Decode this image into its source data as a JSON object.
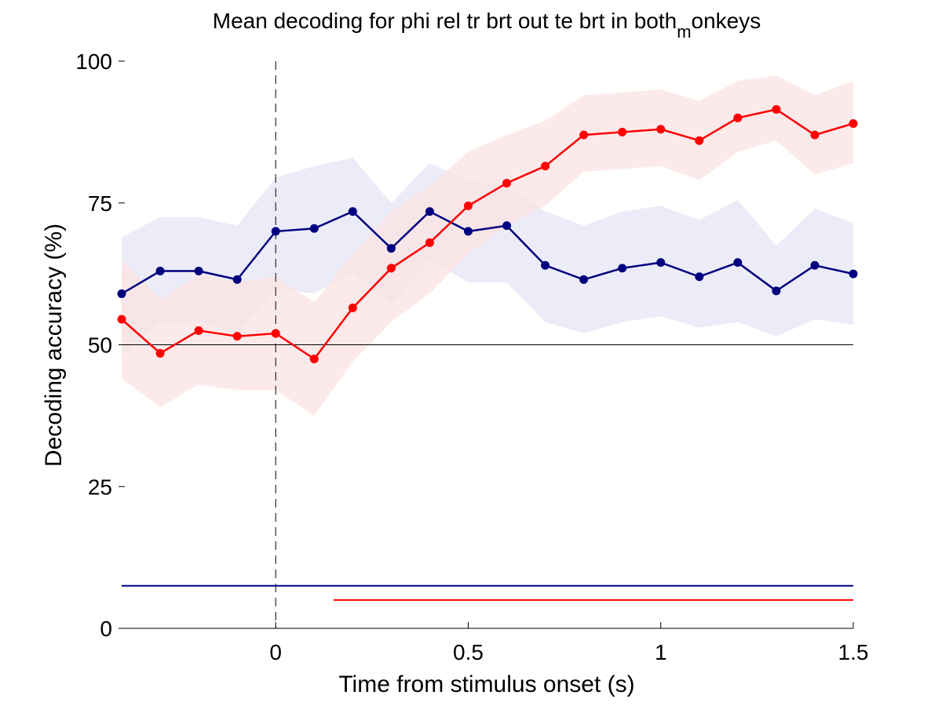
{
  "chart_data": {
    "type": "line",
    "title": {
      "text": "Mean decoding for phi rel tr brt out te brt in  both",
      "subscript": "m",
      "suffix": "onkeys"
    },
    "xlabel": "Time from stimulus onset (s)",
    "ylabel": "Decoding accuracy (%)",
    "xlim": [
      -0.4,
      1.5
    ],
    "ylim": [
      0,
      100
    ],
    "x_ticks": [
      0,
      0.5,
      1,
      1.5
    ],
    "x_tick_labels": [
      "0",
      "0.5",
      "1",
      "1.5"
    ],
    "y_ticks": [
      0,
      25,
      50,
      75,
      100
    ],
    "y_tick_labels": [
      "0",
      "25",
      "50",
      "75",
      "100"
    ],
    "grid": false,
    "chance_level": 50,
    "stimulus_onset": 0,
    "x": [
      -0.4,
      -0.3,
      -0.2,
      -0.1,
      0.0,
      0.1,
      0.2,
      0.3,
      0.4,
      0.5,
      0.6,
      0.7,
      0.8,
      0.9,
      1.0,
      1.1,
      1.2,
      1.3,
      1.4,
      1.5
    ],
    "series": [
      {
        "color": "#00007f",
        "shade_color": "#e6e6f5",
        "values": [
          59,
          63,
          63,
          61.5,
          70,
          70.5,
          73.5,
          67,
          73.5,
          70,
          71,
          64,
          61.5,
          63.5,
          64.5,
          62,
          64.5,
          59.5,
          64,
          62.5
        ],
        "lower": [
          48,
          54,
          54,
          52,
          60,
          59,
          63,
          57,
          65,
          61,
          61,
          54,
          52,
          54,
          55,
          53,
          54,
          51.5,
          54.5,
          53.5
        ],
        "upper": [
          69,
          72.5,
          72.5,
          71,
          79.5,
          81.5,
          83,
          75,
          82,
          79,
          78,
          73.5,
          71,
          73.5,
          74.5,
          72,
          75.5,
          67.5,
          74,
          71.5
        ],
        "significance_line": {
          "x_start": -0.4,
          "x_end": 1.5,
          "y": 7.5
        }
      },
      {
        "color": "#ff0000",
        "shade_color": "#fbe3e3",
        "values": [
          54.5,
          48.5,
          52.5,
          51.5,
          52,
          47.5,
          56.5,
          63.5,
          68,
          74.5,
          78.5,
          81.5,
          87,
          87.5,
          88,
          86,
          90,
          91.5,
          87,
          89
        ],
        "lower": [
          44,
          39,
          43,
          42,
          42,
          37.5,
          47,
          54,
          59,
          66,
          71,
          74.5,
          80.5,
          81,
          81.5,
          79,
          84,
          86,
          80,
          82
        ],
        "upper": [
          65,
          58,
          62.5,
          61,
          62,
          57.5,
          66,
          73.5,
          78,
          84,
          87,
          89.5,
          94,
          94.5,
          95,
          93,
          96.5,
          97.5,
          94,
          96.5
        ],
        "significance_line": {
          "x_start": 0.15,
          "x_end": 1.5,
          "y": 5
        }
      }
    ]
  }
}
